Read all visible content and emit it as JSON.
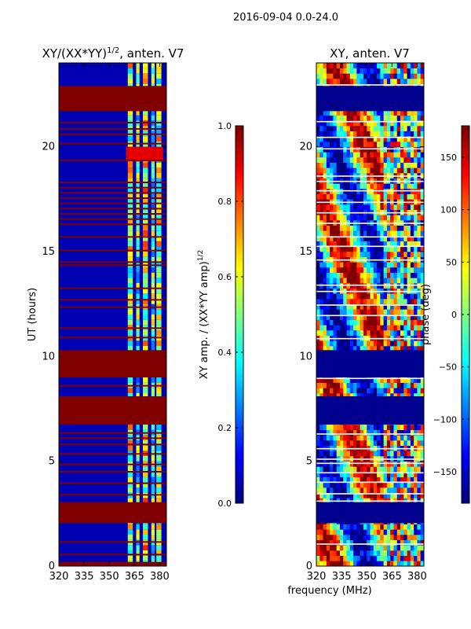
{
  "figure": {
    "suptitle": "2016-09-04 0.0-24.0",
    "common_xlabel": "frequency (MHz)"
  },
  "chart_data": [
    {
      "type": "heatmap",
      "title": "XY/(XX*YY)",
      "title_sup": "1/2",
      "title_suffix": ", anten. V7",
      "xlabel": "",
      "ylabel": "UT (hours)",
      "xlim": [
        320,
        384
      ],
      "ylim": [
        0,
        24
      ],
      "x_ticks": [
        320,
        335,
        350,
        365,
        380
      ],
      "y_ticks": [
        0,
        5,
        10,
        15,
        20
      ],
      "colorbar": {
        "label": "XY amp. / (XX*YY amp)",
        "label_sup": "1/2",
        "range": [
          0.0,
          1.0
        ],
        "ticks": [
          "0.0",
          "0.2",
          "0.4",
          "0.6",
          "0.8",
          "1.0"
        ],
        "colormap": "jet"
      },
      "background_value": 0.05,
      "flagged_bands": [
        [
          0.0,
          0.2
        ],
        [
          2.05,
          3.05
        ],
        [
          6.75,
          8.1
        ],
        [
          9.0,
          10.3
        ],
        [
          21.7,
          22.9
        ]
      ],
      "flag_lines": [
        0.55,
        1.15,
        3.4,
        3.95,
        4.5,
        4.85,
        5.35,
        5.8,
        6.1,
        6.35,
        8.6,
        10.9,
        11.35,
        12.35,
        12.7,
        13.25,
        14.35,
        14.5,
        15.05,
        15.7,
        16.3,
        16.55,
        16.8,
        17.05,
        17.3,
        17.55,
        17.8,
        18.05,
        18.3,
        19.35,
        20.15,
        20.6,
        20.85,
        21.15
      ],
      "rfi_columns": [
        {
          "freq_range": [
            361,
            364
          ],
          "value": 0.55
        },
        {
          "freq_range": [
            366,
            368
          ],
          "value": 0.45
        },
        {
          "freq_range": [
            370,
            373
          ],
          "value": 0.6
        },
        {
          "freq_range": [
            375,
            377
          ],
          "value": 0.45
        },
        {
          "freq_range": [
            378,
            381
          ],
          "value": 0.55
        }
      ],
      "hot_patch": {
        "freq_range": [
          360,
          382
        ],
        "time_range": [
          19.3,
          20.0
        ],
        "value": 0.9
      }
    },
    {
      "type": "heatmap",
      "title": "XY, anten. V7",
      "xlabel": "",
      "ylabel": "",
      "xlim": [
        320,
        384
      ],
      "ylim": [
        0,
        24
      ],
      "x_ticks": [
        320,
        335,
        350,
        365,
        380
      ],
      "y_ticks": [
        0,
        5,
        10,
        15,
        20
      ],
      "colorbar": {
        "label": "phase (deg)",
        "range": [
          -180,
          180
        ],
        "ticks": [
          "150",
          "100",
          "50",
          "0",
          "−50",
          "−100",
          "−150"
        ],
        "tick_values": [
          150,
          100,
          50,
          0,
          -50,
          -100,
          -150
        ],
        "colormap": "jet"
      },
      "background_value": -170,
      "flagged_bands": [
        [
          2.05,
          3.05
        ],
        [
          6.75,
          8.1
        ],
        [
          9.0,
          10.3
        ],
        [
          21.7,
          22.9
        ]
      ],
      "white_lines": [
        1.05,
        3.1,
        3.45,
        4.0,
        4.45,
        4.9,
        5.1,
        5.6,
        6.3,
        8.05,
        8.95,
        10.85,
        11.95,
        12.45,
        13.1,
        13.4,
        14.6,
        15.25,
        15.7,
        16.35,
        16.85,
        17.35,
        17.9,
        18.35,
        18.6,
        19.9,
        20.45,
        21.2,
        22.95
      ]
    }
  ]
}
